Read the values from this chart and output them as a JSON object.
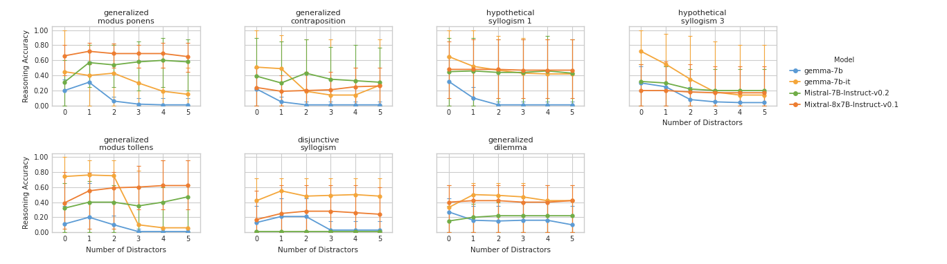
{
  "models": [
    "gemma-7b",
    "gemma-7b-it",
    "Mistral-7B-Instruct-v0.2",
    "Mixtral-8x7B-Instruct-v0.1"
  ],
  "model_colors": [
    "#5b9bd5",
    "#f4a63a",
    "#70ad47",
    "#ed7d31"
  ],
  "x": [
    0,
    1,
    2,
    3,
    4,
    5
  ],
  "subplots": [
    {
      "title": "generalized\nmodus ponens",
      "row": 0,
      "col": 0,
      "data": {
        "gemma-7b": {
          "mean": [
            0.2,
            0.31,
            0.06,
            0.02,
            0.01,
            0.01
          ],
          "lo": [
            0.0,
            0.0,
            0.0,
            0.0,
            0.0,
            0.0
          ],
          "hi": [
            0.35,
            0.58,
            0.12,
            0.1,
            0.1,
            0.1
          ]
        },
        "gemma-7b-it": {
          "mean": [
            0.45,
            0.4,
            0.43,
            0.3,
            0.19,
            0.15
          ],
          "lo": [
            0.0,
            0.0,
            0.0,
            0.0,
            0.0,
            0.0
          ],
          "hi": [
            1.0,
            0.8,
            0.8,
            0.5,
            0.5,
            0.5
          ]
        },
        "Mistral-7B-Instruct-v0.2": {
          "mean": [
            0.31,
            0.57,
            0.54,
            0.58,
            0.6,
            0.58
          ],
          "lo": [
            0.0,
            0.25,
            0.25,
            0.2,
            0.25,
            0.2
          ],
          "hi": [
            0.6,
            0.8,
            0.8,
            0.85,
            0.9,
            0.88
          ]
        },
        "Mixtral-8x7B-Instruct-v0.1": {
          "mean": [
            0.66,
            0.72,
            0.69,
            0.69,
            0.69,
            0.65
          ],
          "lo": [
            0.4,
            0.55,
            0.5,
            0.5,
            0.5,
            0.45
          ],
          "hi": [
            0.8,
            0.83,
            0.82,
            0.8,
            0.83,
            0.83
          ]
        }
      }
    },
    {
      "title": "generalized\ncontraposition",
      "row": 0,
      "col": 1,
      "data": {
        "gemma-7b": {
          "mean": [
            0.22,
            0.05,
            0.01,
            0.01,
            0.01,
            0.01
          ],
          "lo": [
            0.0,
            0.0,
            0.0,
            0.0,
            0.0,
            0.0
          ],
          "hi": [
            0.5,
            0.12,
            0.05,
            0.05,
            0.05,
            0.05
          ]
        },
        "gemma-7b-it": {
          "mean": [
            0.51,
            0.49,
            0.19,
            0.14,
            0.14,
            0.27
          ],
          "lo": [
            0.0,
            0.0,
            0.0,
            0.0,
            0.0,
            0.0
          ],
          "hi": [
            1.0,
            0.93,
            0.88,
            0.88,
            0.5,
            0.88
          ]
        },
        "Mistral-7B-Instruct-v0.2": {
          "mean": [
            0.39,
            0.3,
            0.43,
            0.35,
            0.33,
            0.31
          ],
          "lo": [
            0.0,
            0.0,
            0.0,
            0.0,
            0.0,
            0.0
          ],
          "hi": [
            0.9,
            0.85,
            0.88,
            0.78,
            0.8,
            0.77
          ]
        },
        "Mixtral-8x7B-Instruct-v0.1": {
          "mean": [
            0.24,
            0.19,
            0.2,
            0.21,
            0.25,
            0.26
          ],
          "lo": [
            0.0,
            0.0,
            0.0,
            0.0,
            0.0,
            0.0
          ],
          "hi": [
            0.5,
            0.4,
            0.45,
            0.45,
            0.5,
            0.5
          ]
        }
      }
    },
    {
      "title": "hypothetical\nsyllogism 1",
      "row": 0,
      "col": 2,
      "data": {
        "gemma-7b": {
          "mean": [
            0.32,
            0.1,
            0.01,
            0.01,
            0.01,
            0.01
          ],
          "lo": [
            0.0,
            0.0,
            0.0,
            0.0,
            0.0,
            0.0
          ],
          "hi": [
            0.65,
            0.25,
            0.05,
            0.05,
            0.05,
            0.05
          ]
        },
        "gemma-7b-it": {
          "mean": [
            0.65,
            0.52,
            0.47,
            0.43,
            0.42,
            0.42
          ],
          "lo": [
            0.0,
            0.0,
            0.0,
            0.0,
            0.0,
            0.0
          ],
          "hi": [
            1.0,
            1.0,
            0.92,
            0.9,
            0.88,
            0.88
          ]
        },
        "Mistral-7B-Instruct-v0.2": {
          "mean": [
            0.45,
            0.46,
            0.44,
            0.44,
            0.46,
            0.43
          ],
          "lo": [
            0.0,
            0.0,
            0.0,
            0.0,
            0.0,
            0.0
          ],
          "hi": [
            0.9,
            0.9,
            0.88,
            0.88,
            0.92,
            0.88
          ]
        },
        "Mixtral-8x7B-Instruct-v0.1": {
          "mean": [
            0.48,
            0.48,
            0.48,
            0.47,
            0.47,
            0.47
          ],
          "lo": [
            0.1,
            0.1,
            0.1,
            0.1,
            0.1,
            0.1
          ],
          "hi": [
            0.85,
            0.88,
            0.88,
            0.88,
            0.88,
            0.88
          ]
        }
      }
    },
    {
      "title": "hypothetical\nsyllogism 3",
      "row": 0,
      "col": 3,
      "data": {
        "gemma-7b": {
          "mean": [
            0.3,
            0.25,
            0.08,
            0.05,
            0.04,
            0.04
          ],
          "lo": [
            0.0,
            0.0,
            0.0,
            0.0,
            0.0,
            0.0
          ],
          "hi": [
            0.52,
            0.52,
            0.25,
            0.18,
            0.18,
            0.18
          ]
        },
        "gemma-7b-it": {
          "mean": [
            0.72,
            0.55,
            0.35,
            0.18,
            0.14,
            0.14
          ],
          "lo": [
            0.0,
            0.0,
            0.0,
            0.0,
            0.0,
            0.0
          ],
          "hi": [
            1.0,
            0.95,
            0.92,
            0.85,
            0.8,
            0.8
          ]
        },
        "Mistral-7B-Instruct-v0.2": {
          "mean": [
            0.32,
            0.3,
            0.22,
            0.2,
            0.2,
            0.2
          ],
          "lo": [
            0.0,
            0.0,
            0.0,
            0.0,
            0.0,
            0.0
          ],
          "hi": [
            0.55,
            0.52,
            0.48,
            0.48,
            0.48,
            0.48
          ]
        },
        "Mixtral-8x7B-Instruct-v0.1": {
          "mean": [
            0.2,
            0.2,
            0.18,
            0.17,
            0.17,
            0.17
          ],
          "lo": [
            0.0,
            0.0,
            0.0,
            0.0,
            0.0,
            0.0
          ],
          "hi": [
            0.55,
            0.58,
            0.55,
            0.52,
            0.52,
            0.52
          ]
        }
      }
    },
    {
      "title": "generalized\nmodus tollens",
      "row": 1,
      "col": 0,
      "data": {
        "gemma-7b": {
          "mean": [
            0.11,
            0.2,
            0.1,
            0.01,
            0.01,
            0.01
          ],
          "lo": [
            0.0,
            0.0,
            0.0,
            0.0,
            0.0,
            0.0
          ],
          "hi": [
            0.35,
            0.65,
            0.22,
            0.05,
            0.05,
            0.05
          ]
        },
        "gemma-7b-it": {
          "mean": [
            0.74,
            0.76,
            0.75,
            0.1,
            0.06,
            0.06
          ],
          "lo": [
            0.0,
            0.0,
            0.0,
            0.0,
            0.0,
            0.0
          ],
          "hi": [
            1.0,
            0.95,
            0.95,
            0.82,
            0.95,
            0.95
          ]
        },
        "Mistral-7B-Instruct-v0.2": {
          "mean": [
            0.32,
            0.4,
            0.4,
            0.35,
            0.4,
            0.47
          ],
          "lo": [
            0.0,
            0.0,
            0.0,
            0.0,
            0.0,
            0.0
          ],
          "hi": [
            0.65,
            0.68,
            0.62,
            0.6,
            0.6,
            0.62
          ]
        },
        "Mixtral-8x7B-Instruct-v0.1": {
          "mean": [
            0.39,
            0.55,
            0.59,
            0.6,
            0.62,
            0.62
          ],
          "lo": [
            0.05,
            0.05,
            0.05,
            0.3,
            0.3,
            0.3
          ],
          "hi": [
            0.8,
            0.79,
            0.8,
            0.88,
            0.95,
            0.95
          ]
        }
      }
    },
    {
      "title": "disjunctive\nsyllogism",
      "row": 1,
      "col": 1,
      "data": {
        "gemma-7b": {
          "mean": [
            0.13,
            0.21,
            0.21,
            0.03,
            0.03,
            0.03
          ],
          "lo": [
            0.0,
            0.0,
            0.0,
            0.0,
            0.0,
            0.0
          ],
          "hi": [
            0.35,
            0.45,
            0.45,
            0.15,
            0.15,
            0.15
          ]
        },
        "gemma-7b-it": {
          "mean": [
            0.42,
            0.55,
            0.48,
            0.49,
            0.5,
            0.48
          ],
          "lo": [
            0.0,
            0.0,
            0.0,
            0.0,
            0.0,
            0.0
          ],
          "hi": [
            0.72,
            0.72,
            0.72,
            0.72,
            0.72,
            0.72
          ]
        },
        "Mistral-7B-Instruct-v0.2": {
          "mean": [
            0.01,
            0.01,
            0.01,
            0.01,
            0.01,
            0.01
          ],
          "lo": [
            0.0,
            0.0,
            0.0,
            0.0,
            0.0,
            0.0
          ],
          "hi": [
            0.02,
            0.02,
            0.02,
            0.02,
            0.02,
            0.02
          ]
        },
        "Mixtral-8x7B-Instruct-v0.1": {
          "mean": [
            0.17,
            0.25,
            0.28,
            0.28,
            0.26,
            0.24
          ],
          "lo": [
            0.0,
            0.0,
            0.0,
            0.0,
            0.0,
            0.0
          ],
          "hi": [
            0.55,
            0.62,
            0.62,
            0.62,
            0.62,
            0.6
          ]
        }
      }
    },
    {
      "title": "generalized\ndilemma",
      "row": 1,
      "col": 2,
      "data": {
        "gemma-7b": {
          "mean": [
            0.27,
            0.16,
            0.15,
            0.16,
            0.16,
            0.1
          ],
          "lo": [
            0.0,
            0.0,
            0.0,
            0.0,
            0.0,
            0.0
          ],
          "hi": [
            0.45,
            0.35,
            0.35,
            0.4,
            0.4,
            0.35
          ]
        },
        "gemma-7b-it": {
          "mean": [
            0.33,
            0.5,
            0.49,
            0.47,
            0.42,
            0.42
          ],
          "lo": [
            0.0,
            0.0,
            0.0,
            0.0,
            0.0,
            0.0
          ],
          "hi": [
            0.62,
            0.65,
            0.65,
            0.65,
            0.62,
            0.62
          ]
        },
        "Mistral-7B-Instruct-v0.2": {
          "mean": [
            0.15,
            0.2,
            0.22,
            0.22,
            0.22,
            0.22
          ],
          "lo": [
            0.0,
            0.0,
            0.0,
            0.0,
            0.0,
            0.0
          ],
          "hi": [
            0.35,
            0.38,
            0.4,
            0.4,
            0.42,
            0.42
          ]
        },
        "Mixtral-8x7B-Instruct-v0.1": {
          "mean": [
            0.4,
            0.42,
            0.42,
            0.4,
            0.4,
            0.42
          ],
          "lo": [
            0.0,
            0.0,
            0.0,
            0.0,
            0.0,
            0.0
          ],
          "hi": [
            0.62,
            0.62,
            0.62,
            0.62,
            0.62,
            0.62
          ]
        }
      }
    }
  ],
  "xlabel": "Number of Distractors",
  "ylabel": "Reasoning Accuracy",
  "ylim": [
    0.0,
    1.05
  ],
  "yticks": [
    0.0,
    0.2,
    0.4,
    0.6,
    0.8,
    1.0
  ],
  "legend_title": "Model",
  "legend_labels": [
    "gemma-7b",
    "gemma-7b-it",
    "Mistral-7B-Instruct-v0.2",
    "Mixtral-8x7B-Instruct-v0.1"
  ]
}
